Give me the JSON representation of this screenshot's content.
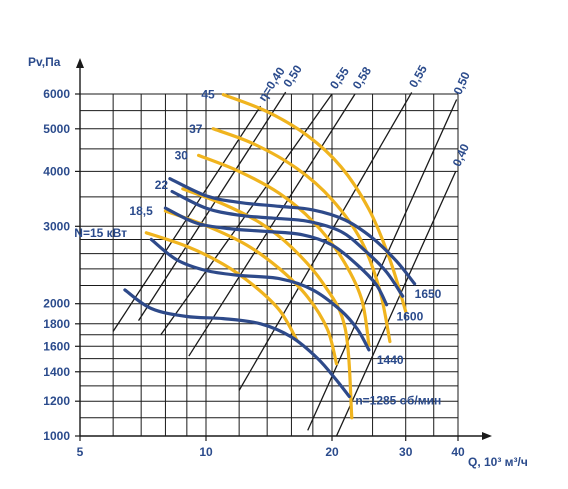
{
  "chart_data": {
    "type": "line",
    "title": "",
    "xlabel": "Q, 10³ м³/ч",
    "ylabel": "Pv,Па",
    "x_scale": "log",
    "y_scale": "log",
    "xlim": [
      5,
      40
    ],
    "ylim": [
      1000,
      6000
    ],
    "x_ticks": [
      5,
      10,
      20,
      30,
      40
    ],
    "x_tick_labels": [
      "5",
      "10",
      "20",
      "30",
      "40"
    ],
    "y_ticks": [
      1000,
      1200,
      1400,
      1600,
      1800,
      2000,
      3000,
      4000,
      5000,
      6000
    ],
    "y_tick_labels": [
      "1000",
      "1200",
      "1400",
      "1600",
      "1800",
      "2000",
      "3000",
      "4000",
      "5000",
      "6000"
    ],
    "x_grid": [
      6,
      7,
      8,
      9,
      10,
      12,
      14,
      16,
      18,
      20,
      25,
      30,
      35,
      40
    ],
    "y_grid": [
      1000,
      1100,
      1200,
      1300,
      1400,
      1500,
      1600,
      1700,
      1800,
      2000,
      2200,
      2400,
      2600,
      2800,
      3000,
      3500,
      4000,
      4500,
      5000,
      5500,
      6000
    ],
    "grid": true,
    "speed_curves": [
      {
        "label": "n=1285 об/мин",
        "points": [
          [
            6.4,
            2150
          ],
          [
            7.4,
            1950
          ],
          [
            9,
            1870
          ],
          [
            11,
            1850
          ],
          [
            13.5,
            1800
          ],
          [
            16,
            1680
          ],
          [
            18.5,
            1500
          ],
          [
            20.5,
            1340
          ],
          [
            22,
            1230
          ]
        ]
      },
      {
        "label": "1440",
        "points": [
          [
            7.4,
            2800
          ],
          [
            8.5,
            2520
          ],
          [
            10,
            2380
          ],
          [
            12,
            2320
          ],
          [
            15,
            2280
          ],
          [
            18,
            2150
          ],
          [
            21,
            1930
          ],
          [
            23,
            1750
          ],
          [
            24.5,
            1570
          ]
        ]
      },
      {
        "label": "1600",
        "points": [
          [
            8,
            3300
          ],
          [
            9.5,
            3050
          ],
          [
            11.5,
            2960
          ],
          [
            14,
            2920
          ],
          [
            17,
            2870
          ],
          [
            20,
            2720
          ],
          [
            23,
            2450
          ],
          [
            25.5,
            2210
          ],
          [
            27,
            1990
          ]
        ]
      },
      {
        "label": "1650",
        "points": [
          [
            8.3,
            3600
          ],
          [
            10,
            3300
          ],
          [
            12,
            3180
          ],
          [
            14.5,
            3130
          ],
          [
            17.5,
            3080
          ],
          [
            21,
            2920
          ],
          [
            24,
            2640
          ],
          [
            27,
            2360
          ],
          [
            29.5,
            2080
          ]
        ]
      },
      {
        "label": "",
        "points": [
          [
            8.2,
            3850
          ],
          [
            10,
            3520
          ],
          [
            12,
            3400
          ],
          [
            15,
            3330
          ],
          [
            18,
            3270
          ],
          [
            21.5,
            3100
          ],
          [
            25,
            2820
          ],
          [
            28.5,
            2500
          ],
          [
            31.5,
            2220
          ]
        ]
      }
    ],
    "power_curves": [
      {
        "label": "N=15 кВт",
        "points": [
          [
            7.2,
            2900
          ],
          [
            9,
            2700
          ],
          [
            11,
            2460
          ],
          [
            13,
            2200
          ],
          [
            15,
            1930
          ],
          [
            16.5,
            1650
          ]
        ]
      },
      {
        "label": "18,5",
        "points": [
          [
            8,
            3250
          ],
          [
            10,
            3010
          ],
          [
            12.5,
            2720
          ],
          [
            15,
            2400
          ],
          [
            17.5,
            2070
          ],
          [
            19.5,
            1750
          ],
          [
            20.5,
            1460
          ]
        ]
      },
      {
        "label": "22",
        "points": [
          [
            8.8,
            3650
          ],
          [
            11,
            3370
          ],
          [
            13.5,
            3050
          ],
          [
            16,
            2690
          ],
          [
            19,
            2230
          ],
          [
            21.5,
            1760
          ],
          [
            22.3,
            1100
          ]
        ]
      },
      {
        "label": "30",
        "points": [
          [
            9.6,
            4350
          ],
          [
            12,
            4000
          ],
          [
            15,
            3560
          ],
          [
            18,
            3080
          ],
          [
            21,
            2560
          ],
          [
            23.5,
            2060
          ],
          [
            24.5,
            1610
          ]
        ]
      },
      {
        "label": "37",
        "points": [
          [
            10.4,
            5000
          ],
          [
            13,
            4620
          ],
          [
            16.5,
            4060
          ],
          [
            20,
            3450
          ],
          [
            23.5,
            2780
          ],
          [
            26,
            2150
          ],
          [
            27.5,
            1640
          ]
        ]
      },
      {
        "label": "45",
        "points": [
          [
            11,
            5980
          ],
          [
            14,
            5470
          ],
          [
            17.5,
            4820
          ],
          [
            21,
            4100
          ],
          [
            24.5,
            3280
          ],
          [
            27.5,
            2520
          ],
          [
            30,
            1920
          ]
        ]
      }
    ],
    "efficiency_lines": [
      {
        "label": "η=0,40",
        "from": [
          6,
          1730
        ],
        "to": [
          13.5,
          5630
        ]
      },
      {
        "label": "0,50",
        "from": [
          6.9,
          1830
        ],
        "to": [
          15.5,
          6060
        ]
      },
      {
        "label": "0,55",
        "from": [
          7.8,
          1700
        ],
        "to": [
          20,
          6000
        ]
      },
      {
        "label": "0,58",
        "from": [
          9.1,
          1520
        ],
        "to": [
          22.7,
          6000
        ]
      },
      {
        "label": "0,55",
        "from": [
          12,
          1270
        ],
        "to": [
          31,
          6050
        ]
      },
      {
        "label": "0,50",
        "from": [
          17.5,
          1030
        ],
        "to": [
          39.7,
          5830
        ]
      },
      {
        "label": "0,40",
        "from": [
          20.5,
          1000
        ],
        "to": [
          39.5,
          4000
        ]
      }
    ],
    "colors": {
      "speed_curve": "#2e4a8a",
      "power_curve": "#f0b41e",
      "grid": "#1a1a1a",
      "text": "#2b4b8c"
    }
  }
}
